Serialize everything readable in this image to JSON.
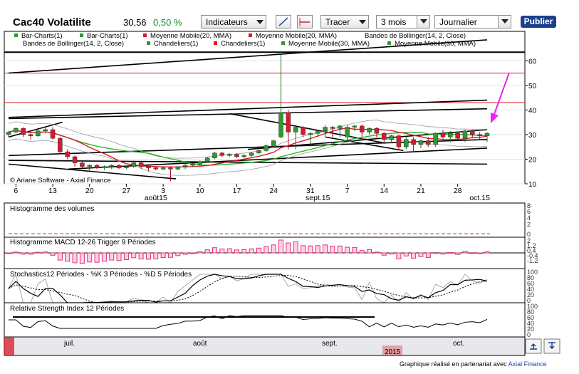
{
  "toolbar": {
    "title": "Cac40 Volatilite",
    "last": "30,56",
    "change": "0,50 %",
    "indicators_label": "Indicateurs",
    "draw_label": "Tracer",
    "period_value": "3 mois",
    "interval_value": "Journalier",
    "publish_label": "Publier"
  },
  "legend": {
    "row1": [
      "Bar-Charts(1)",
      "Bar-Charts(1)",
      "Moyenne Mobile(20, MMA)",
      "Moyenne Mobile(20, MMA)",
      "Bandes de Bollinger(14, 2, Close)"
    ],
    "row2": [
      "Bandes de Bollinger(14, 2, Close)",
      "Chandeliers(1)",
      "Chandeliers(1)",
      "Moyenne Mobile(30, MMA)",
      "Moyenne Mobile(30, MMA)"
    ]
  },
  "main_copyright": "© Ariane Software - Axial Finance",
  "panels": {
    "volumes": "Histogramme des volumes",
    "macd": "Histogramme MACD 12-26   Trigger 9 Périodes",
    "stoch": "Stochastics12 Périodes  - %K 3 Périodes  - %D 5 Périodes",
    "rsi": "Relative Strength Index 12 Périodes"
  },
  "credit": {
    "text": "Graphique réalisé en partenariat avec ",
    "link": "Axial Finance"
  },
  "colors": {
    "up": "#2e9a2e",
    "down": "#d81a2a",
    "ma_green": "#22bb22",
    "macd": "#e0307a",
    "arrow": "#ee22ee",
    "accent": "#1b3f8f"
  },
  "chart_data": {
    "type": "candlestick",
    "ylim": [
      10,
      70
    ],
    "y_ticks": [
      10,
      20,
      30,
      40,
      50,
      60
    ],
    "x_tick_labels": [
      "6",
      "13",
      "20",
      "27",
      "3",
      "10",
      "17",
      "24",
      "31",
      "7",
      "14",
      "21",
      "28"
    ],
    "month_labels": [
      "août15",
      "sept.15",
      "oct.15"
    ],
    "horizontal_lines": [
      63.5,
      55,
      43
    ],
    "ohlc": [
      [
        30,
        31.5,
        29,
        31
      ],
      [
        31,
        33,
        30.5,
        32.5
      ],
      [
        32.5,
        33,
        29,
        30
      ],
      [
        30,
        31,
        28,
        29.5
      ],
      [
        29.5,
        32,
        29,
        31.5
      ],
      [
        31.5,
        33,
        30.5,
        32
      ],
      [
        32,
        33,
        28,
        28.5
      ],
      [
        28.5,
        29,
        22,
        23
      ],
      [
        23,
        24,
        20,
        21
      ],
      [
        21,
        21.5,
        17,
        18.5
      ],
      [
        18.5,
        19,
        16.5,
        17
      ],
      [
        17,
        18,
        15,
        17.5
      ],
      [
        17.5,
        18,
        16,
        16.5
      ],
      [
        16.5,
        17.5,
        15.5,
        17
      ],
      [
        17,
        18,
        16,
        17.5
      ],
      [
        17.5,
        18,
        16,
        16.5
      ],
      [
        16.5,
        17.5,
        16,
        17
      ],
      [
        17,
        19,
        16.5,
        18.5
      ],
      [
        18.5,
        19,
        16,
        17
      ],
      [
        17,
        18,
        15,
        16.5
      ],
      [
        16.5,
        17,
        15.5,
        16
      ],
      [
        16,
        17,
        15.5,
        16.5
      ],
      [
        16.5,
        17,
        11,
        16
      ],
      [
        16,
        17,
        15.5,
        17
      ],
      [
        17,
        18,
        16,
        17.5
      ],
      [
        17.5,
        18.5,
        17,
        18
      ],
      [
        18,
        19.5,
        17.5,
        19
      ],
      [
        19,
        21,
        18.5,
        20.5
      ],
      [
        20.5,
        23,
        20,
        22.5
      ],
      [
        22.5,
        23,
        21,
        21.5
      ],
      [
        21.5,
        22.5,
        21,
        22
      ],
      [
        22,
        22.5,
        20.5,
        21
      ],
      [
        21,
        22,
        20.5,
        21.5
      ],
      [
        21.5,
        23,
        21,
        22.5
      ],
      [
        22.5,
        24,
        22,
        23.5
      ],
      [
        23.5,
        26,
        23,
        25.5
      ],
      [
        25.5,
        28,
        25,
        27.5
      ],
      [
        29,
        64,
        28.5,
        39
      ],
      [
        39,
        40,
        24,
        31
      ],
      [
        31,
        34,
        24,
        33
      ],
      [
        33,
        33.5,
        29,
        30
      ],
      [
        30,
        31,
        25,
        30.5
      ],
      [
        30.5,
        32,
        29,
        31.5
      ],
      [
        31.5,
        34,
        29,
        33
      ],
      [
        33,
        33.5,
        29,
        32.5
      ],
      [
        32.5,
        34,
        29,
        33.5
      ],
      [
        29,
        34,
        27,
        33
      ],
      [
        33,
        34,
        31.5,
        33.5
      ],
      [
        33.5,
        34,
        29,
        31
      ],
      [
        31,
        33,
        30,
        32.5
      ],
      [
        32.5,
        33,
        29,
        30.5
      ],
      [
        30.5,
        31,
        27,
        28
      ],
      [
        28,
        30,
        26.5,
        29.5
      ],
      [
        29.5,
        30,
        24,
        25
      ],
      [
        25,
        29,
        24,
        28
      ],
      [
        28,
        29,
        23,
        26
      ],
      [
        26,
        28,
        24.5,
        27.5
      ],
      [
        27.5,
        29,
        25,
        26
      ],
      [
        26,
        31,
        25,
        30.5
      ],
      [
        30.5,
        32,
        28,
        29
      ],
      [
        29,
        31.5,
        27,
        30.5
      ],
      [
        30.5,
        31,
        27.5,
        28.5
      ],
      [
        28.5,
        32,
        27,
        31.5
      ],
      [
        31.5,
        32,
        29,
        30
      ],
      [
        30,
        31,
        28,
        29.5
      ],
      [
        29.5,
        31,
        27,
        30.5
      ]
    ],
    "annotation": "arrow at latest bar"
  }
}
